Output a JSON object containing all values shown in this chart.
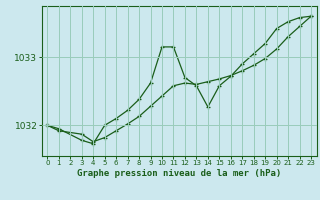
{
  "title": "Graphe pression niveau de la mer (hPa)",
  "bg_color": "#cce8ee",
  "grid_color": "#99ccbb",
  "line_color": "#1a5e1a",
  "xlim": [
    -0.5,
    23.5
  ],
  "ylim": [
    1031.55,
    1033.75
  ],
  "yticks": [
    1032,
    1033
  ],
  "xticks": [
    0,
    1,
    2,
    3,
    4,
    5,
    6,
    7,
    8,
    9,
    10,
    11,
    12,
    13,
    14,
    15,
    16,
    17,
    18,
    19,
    20,
    21,
    22,
    23
  ],
  "series1_x": [
    0,
    1,
    3,
    4,
    5,
    6,
    7,
    8,
    9,
    10,
    11,
    12,
    13,
    14,
    15,
    16,
    17,
    18,
    19,
    20,
    21,
    22,
    23
  ],
  "series1_y": [
    1032.0,
    1031.95,
    1031.78,
    1031.73,
    1032.0,
    1032.1,
    1032.22,
    1032.38,
    1032.62,
    1033.15,
    1033.15,
    1032.7,
    1032.58,
    1032.27,
    1032.58,
    1032.72,
    1032.9,
    1033.05,
    1033.2,
    1033.42,
    1033.52,
    1033.58,
    1033.6
  ],
  "series2_x": [
    0,
    1,
    3,
    4,
    5,
    6,
    7,
    8,
    9,
    10,
    11,
    12,
    13,
    14,
    15,
    16,
    17,
    18,
    19,
    20,
    21,
    22,
    23
  ],
  "series2_y": [
    1032.0,
    1031.92,
    1031.87,
    1031.76,
    1031.82,
    1031.92,
    1032.02,
    1032.13,
    1032.28,
    1032.43,
    1032.58,
    1032.62,
    1032.6,
    1032.64,
    1032.68,
    1032.73,
    1032.8,
    1032.88,
    1032.98,
    1033.12,
    1033.3,
    1033.45,
    1033.6
  ]
}
